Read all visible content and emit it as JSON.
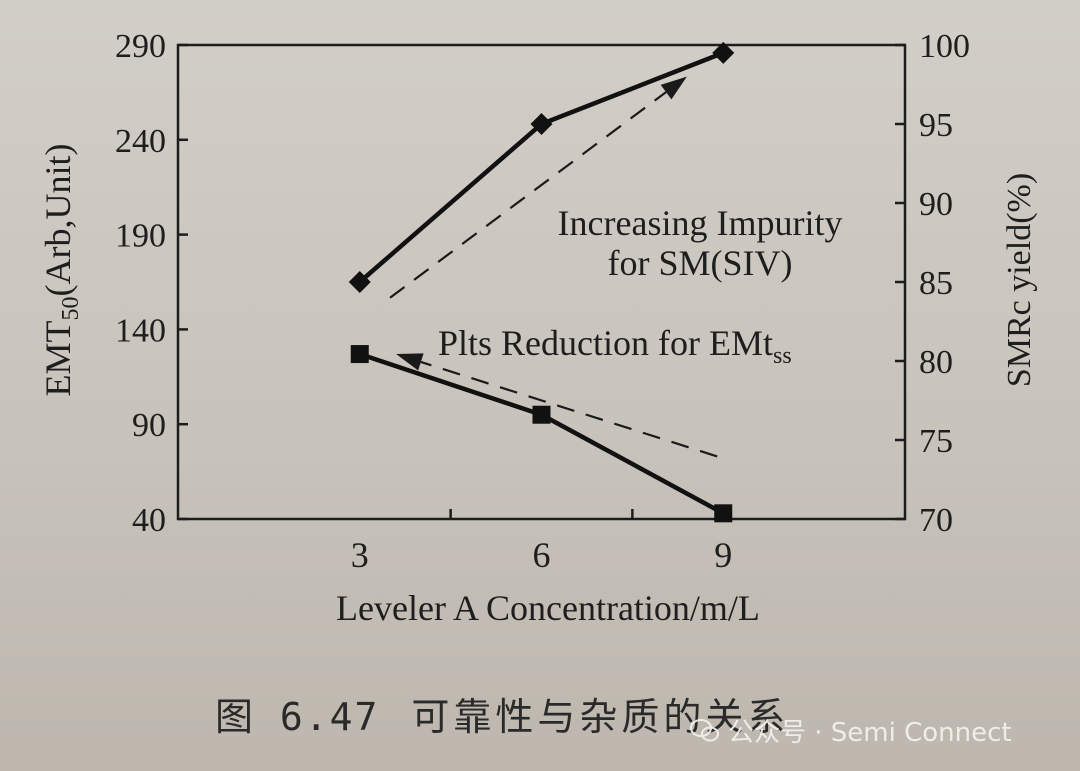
{
  "chart_data": {
    "type": "line",
    "xlabel": "Leveler A Concentration/m/L",
    "ylabel_left": {
      "main": "EMT",
      "sub": "50",
      "rest": "(Arb,Unit)"
    },
    "ylabel_right": "SMRc yield(%)",
    "x_ticks": [
      3,
      6,
      9
    ],
    "xlim": [
      0,
      12
    ],
    "y_left_ticks": [
      40,
      90,
      140,
      190,
      240,
      290
    ],
    "y_left_lim": [
      40,
      290
    ],
    "y_right_ticks": [
      70,
      75,
      80,
      85,
      90,
      95,
      100
    ],
    "y_right_lim": [
      70,
      100
    ],
    "series": [
      {
        "axis": "right",
        "marker": "diamond",
        "x": [
          3,
          6,
          9
        ],
        "y": [
          85,
          95,
          99.5
        ]
      },
      {
        "axis": "left",
        "marker": "square",
        "x": [
          3,
          6,
          9
        ],
        "y": [
          127,
          95,
          43
        ]
      }
    ],
    "annotations": [
      {
        "text": "Increasing Impurity",
        "text2": "for SM(SIV)"
      },
      {
        "text": "Plts Reduction for EMt",
        "sub": "ss"
      }
    ],
    "trend_arrows": [
      {
        "axis": "right",
        "from": [
          3.5,
          84
        ],
        "to": [
          8.4,
          98
        ],
        "head": "end"
      },
      {
        "axis": "left",
        "from": [
          8.9,
          73
        ],
        "to": [
          3.6,
          127
        ],
        "head": "end"
      }
    ]
  },
  "caption": {
    "number": "图 6.47",
    "text": "可靠性与杂质的关系"
  },
  "watermark": {
    "text": "公众号 · Semi Connect"
  }
}
